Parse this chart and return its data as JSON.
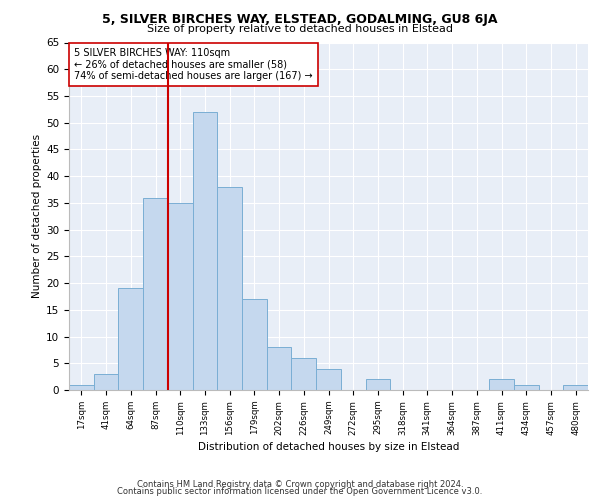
{
  "title": "5, SILVER BIRCHES WAY, ELSTEAD, GODALMING, GU8 6JA",
  "subtitle": "Size of property relative to detached houses in Elstead",
  "xlabel": "Distribution of detached houses by size in Elstead",
  "ylabel": "Number of detached properties",
  "bin_labels": [
    "17sqm",
    "41sqm",
    "64sqm",
    "87sqm",
    "110sqm",
    "133sqm",
    "156sqm",
    "179sqm",
    "202sqm",
    "226sqm",
    "249sqm",
    "272sqm",
    "295sqm",
    "318sqm",
    "341sqm",
    "364sqm",
    "387sqm",
    "411sqm",
    "434sqm",
    "457sqm",
    "480sqm"
  ],
  "bar_values": [
    1,
    3,
    19,
    36,
    35,
    52,
    38,
    17,
    8,
    6,
    4,
    0,
    2,
    0,
    0,
    0,
    0,
    2,
    1,
    0,
    1
  ],
  "bar_color": "#c5d8ee",
  "bar_edge_color": "#7aaed4",
  "vline_x_index": 4,
  "vline_color": "#cc0000",
  "annotation_text": "5 SILVER BIRCHES WAY: 110sqm\n← 26% of detached houses are smaller (58)\n74% of semi-detached houses are larger (167) →",
  "annotation_box_edgecolor": "#cc0000",
  "annotation_box_facecolor": "#ffffff",
  "ylim": [
    0,
    65
  ],
  "yticks": [
    0,
    5,
    10,
    15,
    20,
    25,
    30,
    35,
    40,
    45,
    50,
    55,
    60,
    65
  ],
  "bg_color": "#e8eef7",
  "footer_line1": "Contains HM Land Registry data © Crown copyright and database right 2024.",
  "footer_line2": "Contains public sector information licensed under the Open Government Licence v3.0."
}
